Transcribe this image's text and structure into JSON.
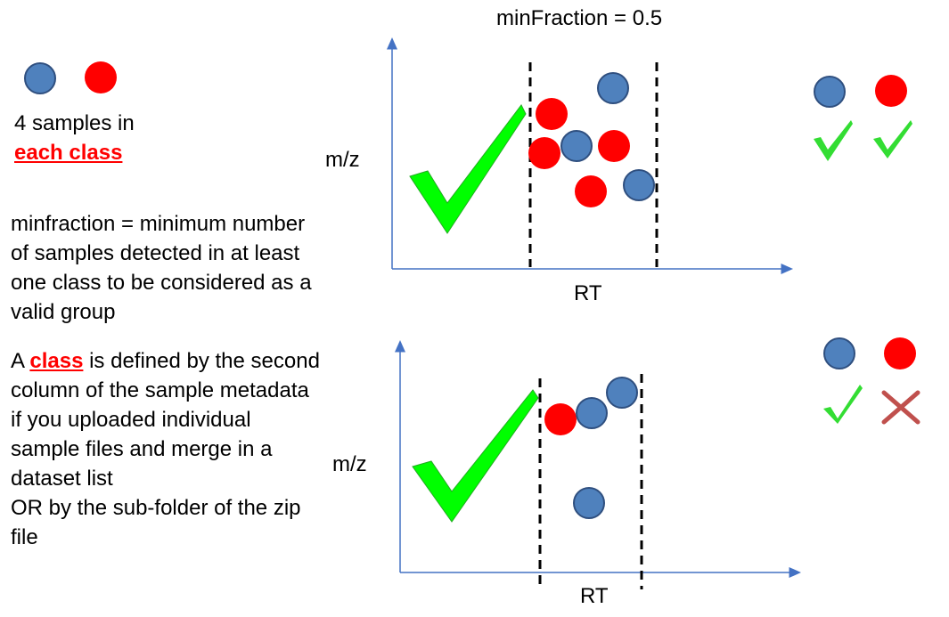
{
  "title": "minFraction  = 0.5",
  "legend_top": {
    "line1": "4 samples in",
    "line2": "each class"
  },
  "definition": {
    "lines": [
      "minfraction = minimum number",
      "of samples detected in at least",
      "one class to be considered as a",
      "valid group"
    ]
  },
  "class_text": {
    "prefix": "A ",
    "highlight": "class",
    "suffix": " is defined by the second",
    "lines": [
      "column of the sample metadata",
      "if you uploaded individual",
      "sample files and merge in a",
      "dataset list",
      "OR by the sub-folder of the zip",
      "file"
    ]
  },
  "axis": {
    "top_ylabel": "m/z",
    "top_xlabel": "RT",
    "bottom_ylabel": "m/z",
    "bottom_xlabel": "RT"
  },
  "colors": {
    "blue": "#4f81bd",
    "blue_stroke": "#2f4f7f",
    "red": "#ff0000",
    "check_big": "#00ff00",
    "check_small": "#33dd33",
    "cross": "#c0504d",
    "axis": "#4472c4"
  },
  "panels": [
    {
      "name": "top",
      "result_blue": "check",
      "result_red": "check"
    },
    {
      "name": "bottom",
      "result_blue": "check",
      "result_red": "cross"
    }
  ]
}
